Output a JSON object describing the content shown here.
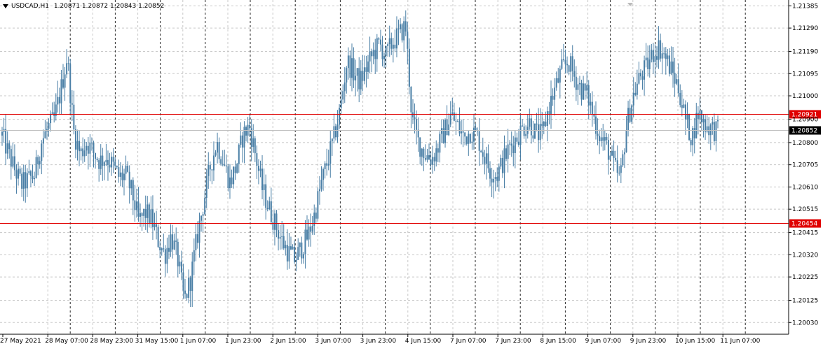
{
  "header": {
    "symbol": "USDCAD,H1",
    "ohlc": "1.20871 1.20872 1.20843 1.20852",
    "menu_icon": "triangle-down-icon"
  },
  "colors": {
    "candle": "#4a7fa6",
    "grid": "#c8c8c8",
    "period_sep": "#000000",
    "hline": "#e00000",
    "current_price": "#c0c0c0",
    "label_bg_current": "#000000",
    "label_bg_line": "#e00000"
  },
  "chart_data": {
    "type": "candlestick",
    "symbol": "USDCAD",
    "timeframe": "H1",
    "ylim": [
      1.1998,
      1.2141
    ],
    "grid": true,
    "y_ticks": [
      "1.21385",
      "1.21290",
      "1.21190",
      "1.21095",
      "1.21000",
      "1.20900",
      "1.20800",
      "1.20705",
      "1.20610",
      "1.20515",
      "1.20415",
      "1.20320",
      "1.20225",
      "1.20125",
      "1.20030"
    ],
    "x_labels": [
      "27 May 2021",
      "28 May 07:00",
      "28 May 23:00",
      "31 May 15:00",
      "1 Jun 07:00",
      "1 Jun 23:00",
      "2 Jun 15:00",
      "3 Jun 07:00",
      "3 Jun 23:00",
      "4 Jun 15:00",
      "7 Jun 07:00",
      "7 Jun 23:00",
      "8 Jun 15:00",
      "9 Jun 07:00",
      "9 Jun 23:00",
      "10 Jun 15:00",
      "11 Jun 07:00"
    ],
    "horizontal_lines": [
      {
        "value": 1.20921,
        "label": "1.20921"
      },
      {
        "value": 1.20454,
        "label": "1.20454"
      }
    ],
    "current_price": {
      "value": 1.20852,
      "label": "1.20852"
    },
    "close_path": [
      1.2083,
      1.2075,
      1.2068,
      1.2062,
      1.2064,
      1.2066,
      1.208,
      1.2086,
      1.209,
      1.2102,
      1.2117,
      1.2085,
      1.2075,
      1.208,
      1.2076,
      1.2072,
      1.2074,
      1.207,
      1.2065,
      1.2066,
      1.2058,
      1.2046,
      1.205,
      1.2047,
      1.2038,
      1.2032,
      1.204,
      1.203,
      1.2012,
      1.2022,
      1.204,
      1.2055,
      1.207,
      1.208,
      1.2072,
      1.2063,
      1.207,
      1.2083,
      1.2087,
      1.2074,
      1.206,
      1.2052,
      1.2045,
      1.2038,
      1.2033,
      1.203,
      1.2035,
      1.204,
      1.2049,
      1.2062,
      1.2072,
      1.2082,
      1.2095,
      1.2115,
      1.211,
      1.2106,
      1.2112,
      1.2118,
      1.2122,
      1.2117,
      1.2123,
      1.2126,
      1.213,
      1.209,
      1.208,
      1.2075,
      1.2073,
      1.2078,
      1.2085,
      1.2092,
      1.2087,
      1.2082,
      1.2085,
      1.2083,
      1.2075,
      1.2068,
      1.2066,
      1.2072,
      1.2078,
      1.2082,
      1.2086,
      1.2089,
      1.2084,
      1.2083,
      1.2095,
      1.2103,
      1.2111,
      1.2115,
      1.2108,
      1.2103,
      1.21,
      1.209,
      1.2082,
      1.2078,
      1.207,
      1.2064,
      1.2088,
      1.21,
      1.2108,
      1.2112,
      1.2118,
      1.2121,
      1.2116,
      1.211,
      1.2103,
      1.209,
      1.2082,
      1.2093,
      1.2088,
      1.2086,
      1.2085
    ]
  }
}
